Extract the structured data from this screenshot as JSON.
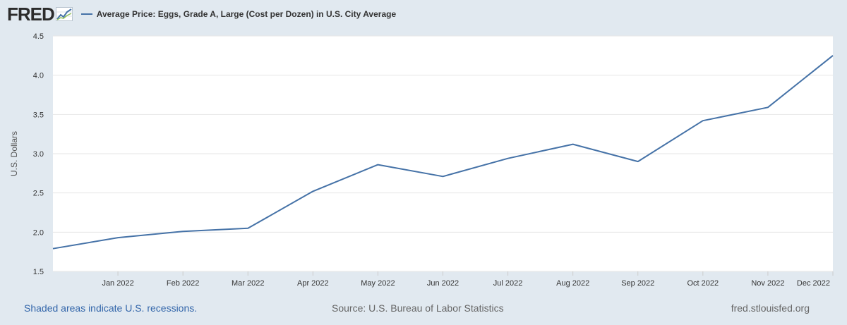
{
  "header": {
    "logo_text": "FRED",
    "logo_icon": "fred-graph-icon",
    "legend_label": "Average Price: Eggs, Grade A, Large (Cost per Dozen) in U.S. City Average"
  },
  "footer": {
    "recessions_note": "Shaded areas indicate U.S. recessions.",
    "source": "Source: U.S. Bureau of Labor Statistics",
    "site": "fred.stlouisfed.org"
  },
  "colors": {
    "line": "#4572a7",
    "background": "#e1e9f0",
    "plot_background": "#ffffff",
    "grid": "#e6e6e6"
  },
  "chart_data": {
    "type": "line",
    "title": "",
    "xlabel": "",
    "ylabel": "U.S. Dollars",
    "ylim": [
      1.5,
      4.5
    ],
    "yticks": [
      "1.5",
      "2.0",
      "2.5",
      "3.0",
      "3.5",
      "4.0",
      "4.5"
    ],
    "x": [
      "2021-12",
      "2022-01",
      "2022-02",
      "2022-03",
      "2022-04",
      "2022-05",
      "2022-06",
      "2022-07",
      "2022-08",
      "2022-09",
      "2022-10",
      "2022-11",
      "2022-12"
    ],
    "xtick_labels": [
      "Jan 2022",
      "Feb 2022",
      "Mar 2022",
      "Apr 2022",
      "May 2022",
      "Jun 2022",
      "Jul 2022",
      "Aug 2022",
      "Sep 2022",
      "Oct 2022",
      "Nov 2022",
      "Dec 2022"
    ],
    "series": [
      {
        "name": "Average Price: Eggs, Grade A, Large (Cost per Dozen) in U.S. City Average",
        "values": [
          1.79,
          1.93,
          2.01,
          2.05,
          2.52,
          2.86,
          2.71,
          2.94,
          3.12,
          2.9,
          3.42,
          3.59,
          4.25
        ]
      }
    ],
    "grid": true,
    "legend_position": "top"
  }
}
